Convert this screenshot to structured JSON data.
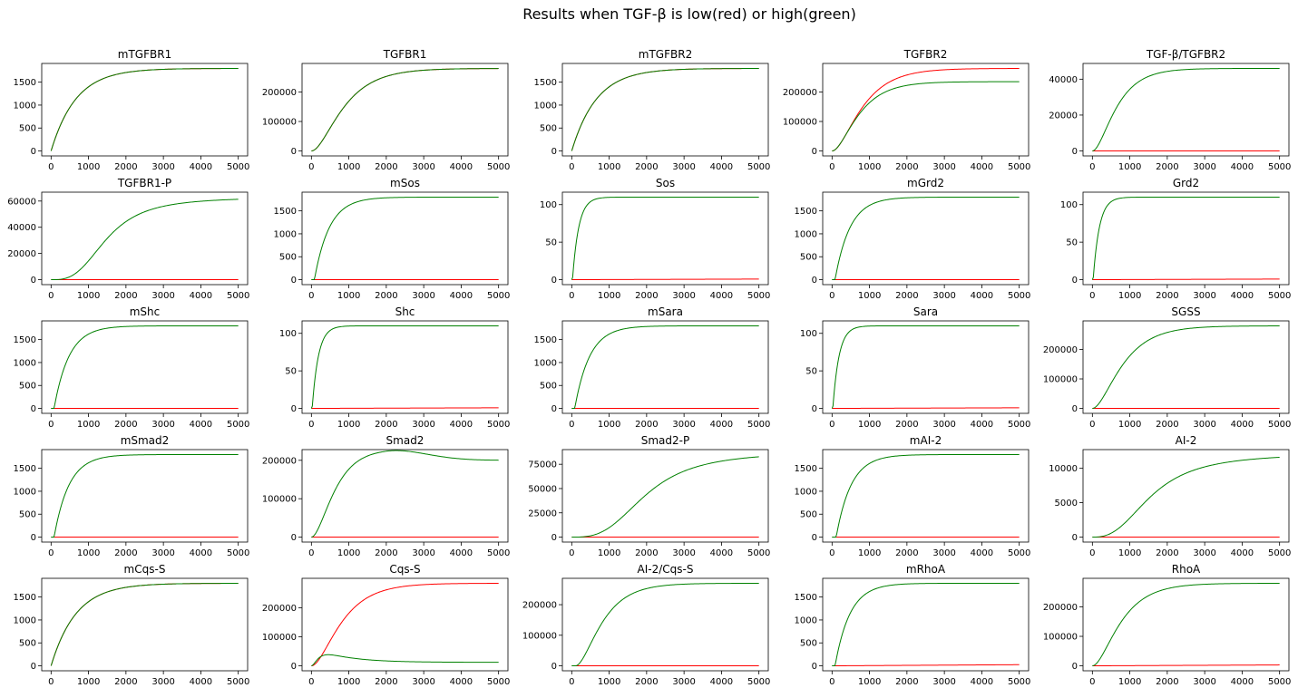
{
  "figure_title": "Results when TGF-β is low(red) or high(green)",
  "colors": {
    "low": "#ff0000",
    "high": "#008000",
    "axes": "#000000"
  },
  "chart_data": [
    {
      "type": "line",
      "title": "mTGFBR1",
      "xlim": [
        0,
        5000
      ],
      "ylim": [
        0,
        1800
      ],
      "xticks": [
        0,
        1000,
        2000,
        3000,
        4000,
        5000
      ],
      "yticks": [
        0,
        500,
        1000,
        1500
      ],
      "ytick_labels": [
        "0",
        "500",
        "1000",
        "1500"
      ],
      "series": [
        {
          "color": "#ff0000",
          "model": "sat",
          "params": {
            "A": 1800,
            "k": 0.0015
          }
        },
        {
          "color": "#008000",
          "model": "sat",
          "params": {
            "A": 1800,
            "k": 0.0015
          }
        }
      ]
    },
    {
      "type": "line",
      "title": "TGFBR1",
      "xlim": [
        0,
        5000
      ],
      "ylim": [
        0,
        280000
      ],
      "xticks": [
        0,
        1000,
        2000,
        3000,
        4000,
        5000
      ],
      "yticks": [
        0,
        100000,
        200000
      ],
      "ytick_labels": [
        "0",
        "100000",
        "200000"
      ],
      "series": [
        {
          "color": "#ff0000",
          "model": "sig",
          "params": {
            "A": 280000,
            "k": 0.0015
          }
        },
        {
          "color": "#008000",
          "model": "sig",
          "params": {
            "A": 280000,
            "k": 0.0015
          }
        }
      ]
    },
    {
      "type": "line",
      "title": "mTGFBR2",
      "xlim": [
        0,
        5000
      ],
      "ylim": [
        0,
        1800
      ],
      "xticks": [
        0,
        1000,
        2000,
        3000,
        4000,
        5000
      ],
      "yticks": [
        0,
        500,
        1000,
        1500
      ],
      "ytick_labels": [
        "0",
        "500",
        "1000",
        "1500"
      ],
      "series": [
        {
          "color": "#ff0000",
          "model": "sat",
          "params": {
            "A": 1800,
            "k": 0.0015
          }
        },
        {
          "color": "#008000",
          "model": "sat",
          "params": {
            "A": 1800,
            "k": 0.0015
          }
        }
      ]
    },
    {
      "type": "line",
      "title": "TGFBR2",
      "xlim": [
        0,
        5000
      ],
      "ylim": [
        0,
        280000
      ],
      "xticks": [
        0,
        1000,
        2000,
        3000,
        4000,
        5000
      ],
      "yticks": [
        0,
        100000,
        200000
      ],
      "ytick_labels": [
        "0",
        "100000",
        "200000"
      ],
      "series": [
        {
          "color": "#ff0000",
          "model": "sig",
          "params": {
            "A": 280000,
            "k": 0.0016
          }
        },
        {
          "color": "#008000",
          "model": "sig",
          "params": {
            "A": 235000,
            "k": 0.0018
          }
        }
      ]
    },
    {
      "type": "line",
      "title": "TGF-β/TGFBR2",
      "xlim": [
        0,
        5000
      ],
      "ylim": [
        0,
        46000
      ],
      "xticks": [
        0,
        1000,
        2000,
        3000,
        4000,
        5000
      ],
      "yticks": [
        0,
        20000,
        40000
      ],
      "ytick_labels": [
        "0",
        "20000",
        "40000"
      ],
      "series": [
        {
          "color": "#ff0000",
          "model": "flat",
          "params": {
            "A": 0
          }
        },
        {
          "color": "#008000",
          "model": "sig",
          "params": {
            "A": 46000,
            "k": 0.002
          }
        }
      ]
    },
    {
      "type": "line",
      "title": "TGFBR1-P",
      "xlim": [
        0,
        5000
      ],
      "ylim": [
        0,
        63000
      ],
      "xticks": [
        0,
        1000,
        2000,
        3000,
        4000,
        5000
      ],
      "yticks": [
        0,
        20000,
        40000,
        60000
      ],
      "ytick_labels": [
        "0",
        "20000",
        "40000",
        "60000"
      ],
      "series": [
        {
          "color": "#ff0000",
          "model": "flat",
          "params": {
            "A": 0
          }
        },
        {
          "color": "#008000",
          "model": "hill",
          "params": {
            "A": 63000,
            "t50": 1500,
            "n": 3
          }
        }
      ]
    },
    {
      "type": "line",
      "title": "mSos",
      "xlim": [
        0,
        5000
      ],
      "ylim": [
        0,
        1800
      ],
      "xticks": [
        0,
        1000,
        2000,
        3000,
        4000,
        5000
      ],
      "yticks": [
        0,
        500,
        1000,
        1500
      ],
      "ytick_labels": [
        "0",
        "500",
        "1000",
        "1500"
      ],
      "series": [
        {
          "color": "#ff0000",
          "model": "flat",
          "params": {
            "A": 0
          }
        },
        {
          "color": "#008000",
          "model": "delsat",
          "params": {
            "A": 1800,
            "k": 0.0025,
            "d": 80
          }
        }
      ]
    },
    {
      "type": "line",
      "title": "Sos",
      "xlim": [
        0,
        5000
      ],
      "ylim": [
        0,
        110
      ],
      "xticks": [
        0,
        1000,
        2000,
        3000,
        4000,
        5000
      ],
      "yticks": [
        0,
        50,
        100
      ],
      "ytick_labels": [
        "0",
        "50",
        "100"
      ],
      "series": [
        {
          "color": "#ff0000",
          "model": "lin",
          "params": {
            "A": 0.8
          }
        },
        {
          "color": "#008000",
          "model": "delsat",
          "params": {
            "A": 110,
            "k": 0.006,
            "d": 20
          }
        }
      ]
    },
    {
      "type": "line",
      "title": "mGrd2",
      "xlim": [
        0,
        5000
      ],
      "ylim": [
        0,
        1800
      ],
      "xticks": [
        0,
        1000,
        2000,
        3000,
        4000,
        5000
      ],
      "yticks": [
        0,
        500,
        1000,
        1500
      ],
      "ytick_labels": [
        "0",
        "500",
        "1000",
        "1500"
      ],
      "series": [
        {
          "color": "#ff0000",
          "model": "flat",
          "params": {
            "A": 0
          }
        },
        {
          "color": "#008000",
          "model": "delsat",
          "params": {
            "A": 1800,
            "k": 0.0025,
            "d": 80
          }
        }
      ]
    },
    {
      "type": "line",
      "title": "Grd2",
      "xlim": [
        0,
        5000
      ],
      "ylim": [
        0,
        110
      ],
      "xticks": [
        0,
        1000,
        2000,
        3000,
        4000,
        5000
      ],
      "yticks": [
        0,
        50,
        100
      ],
      "ytick_labels": [
        "0",
        "50",
        "100"
      ],
      "series": [
        {
          "color": "#ff0000",
          "model": "lin",
          "params": {
            "A": 0.8
          }
        },
        {
          "color": "#008000",
          "model": "delsat",
          "params": {
            "A": 110,
            "k": 0.006,
            "d": 20
          }
        }
      ]
    },
    {
      "type": "line",
      "title": "mShc",
      "xlim": [
        0,
        5000
      ],
      "ylim": [
        0,
        1800
      ],
      "xticks": [
        0,
        1000,
        2000,
        3000,
        4000,
        5000
      ],
      "yticks": [
        0,
        500,
        1000,
        1500
      ],
      "ytick_labels": [
        "0",
        "500",
        "1000",
        "1500"
      ],
      "series": [
        {
          "color": "#ff0000",
          "model": "flat",
          "params": {
            "A": 0
          }
        },
        {
          "color": "#008000",
          "model": "delsat",
          "params": {
            "A": 1800,
            "k": 0.0025,
            "d": 80
          }
        }
      ]
    },
    {
      "type": "line",
      "title": "Shc",
      "xlim": [
        0,
        5000
      ],
      "ylim": [
        0,
        110
      ],
      "xticks": [
        0,
        1000,
        2000,
        3000,
        4000,
        5000
      ],
      "yticks": [
        0,
        50,
        100
      ],
      "ytick_labels": [
        "0",
        "50",
        "100"
      ],
      "series": [
        {
          "color": "#ff0000",
          "model": "lin",
          "params": {
            "A": 0.8
          }
        },
        {
          "color": "#008000",
          "model": "delsat",
          "params": {
            "A": 110,
            "k": 0.006,
            "d": 20
          }
        }
      ]
    },
    {
      "type": "line",
      "title": "mSara",
      "xlim": [
        0,
        5000
      ],
      "ylim": [
        0,
        1800
      ],
      "xticks": [
        0,
        1000,
        2000,
        3000,
        4000,
        5000
      ],
      "yticks": [
        0,
        500,
        1000,
        1500
      ],
      "ytick_labels": [
        "0",
        "500",
        "1000",
        "1500"
      ],
      "series": [
        {
          "color": "#ff0000",
          "model": "flat",
          "params": {
            "A": 0
          }
        },
        {
          "color": "#008000",
          "model": "delsat",
          "params": {
            "A": 1800,
            "k": 0.0025,
            "d": 80
          }
        }
      ]
    },
    {
      "type": "line",
      "title": "Sara",
      "xlim": [
        0,
        5000
      ],
      "ylim": [
        0,
        110
      ],
      "xticks": [
        0,
        1000,
        2000,
        3000,
        4000,
        5000
      ],
      "yticks": [
        0,
        50,
        100
      ],
      "ytick_labels": [
        "0",
        "50",
        "100"
      ],
      "series": [
        {
          "color": "#ff0000",
          "model": "lin",
          "params": {
            "A": 0.8
          }
        },
        {
          "color": "#008000",
          "model": "delsat",
          "params": {
            "A": 110,
            "k": 0.006,
            "d": 20
          }
        }
      ]
    },
    {
      "type": "line",
      "title": "SGSS",
      "xlim": [
        0,
        5000
      ],
      "ylim": [
        0,
        280000
      ],
      "xticks": [
        0,
        1000,
        2000,
        3000,
        4000,
        5000
      ],
      "yticks": [
        0,
        100000,
        200000
      ],
      "ytick_labels": [
        "0",
        "100000",
        "200000"
      ],
      "series": [
        {
          "color": "#ff0000",
          "model": "flat",
          "params": {
            "A": 0
          }
        },
        {
          "color": "#008000",
          "model": "sig",
          "params": {
            "A": 280000,
            "k": 0.0016
          }
        }
      ]
    },
    {
      "type": "line",
      "title": "mSmad2",
      "xlim": [
        0,
        5000
      ],
      "ylim": [
        0,
        1800
      ],
      "xticks": [
        0,
        1000,
        2000,
        3000,
        4000,
        5000
      ],
      "yticks": [
        0,
        500,
        1000,
        1500
      ],
      "ytick_labels": [
        "0",
        "500",
        "1000",
        "1500"
      ],
      "series": [
        {
          "color": "#ff0000",
          "model": "flat",
          "params": {
            "A": 0
          }
        },
        {
          "color": "#008000",
          "model": "delsat",
          "params": {
            "A": 1800,
            "k": 0.0025,
            "d": 80
          }
        }
      ]
    },
    {
      "type": "line",
      "title": "Smad2",
      "xlim": [
        0,
        5000
      ],
      "ylim": [
        0,
        215000
      ],
      "xticks": [
        0,
        1000,
        2000,
        3000,
        4000,
        5000
      ],
      "yticks": [
        0,
        100000,
        200000
      ],
      "ytick_labels": [
        "0",
        "100000",
        "200000"
      ],
      "series": [
        {
          "color": "#ff0000",
          "model": "flat",
          "params": {
            "A": 0
          }
        },
        {
          "color": "#008000",
          "model": "sigover",
          "params": {
            "A": 200000,
            "k": 0.0022,
            "B": 30000,
            "c": 2000,
            "w": 700
          }
        }
      ]
    },
    {
      "type": "line",
      "title": "Smad2-P",
      "xlim": [
        0,
        5000
      ],
      "ylim": [
        0,
        85000
      ],
      "xticks": [
        0,
        1000,
        2000,
        3000,
        4000,
        5000
      ],
      "yticks": [
        0,
        25000,
        50000,
        75000
      ],
      "ytick_labels": [
        "0",
        "25000",
        "50000",
        "75000"
      ],
      "series": [
        {
          "color": "#ff0000",
          "model": "flat",
          "params": {
            "A": 0
          }
        },
        {
          "color": "#008000",
          "model": "hill",
          "params": {
            "A": 88000,
            "t50": 2000,
            "n": 3
          }
        }
      ]
    },
    {
      "type": "line",
      "title": "mAI-2",
      "xlim": [
        0,
        5000
      ],
      "ylim": [
        0,
        1800
      ],
      "xticks": [
        0,
        1000,
        2000,
        3000,
        4000,
        5000
      ],
      "yticks": [
        0,
        500,
        1000,
        1500
      ],
      "ytick_labels": [
        "0",
        "500",
        "1000",
        "1500"
      ],
      "series": [
        {
          "color": "#ff0000",
          "model": "flat",
          "params": {
            "A": 0
          }
        },
        {
          "color": "#008000",
          "model": "delsat",
          "params": {
            "A": 1800,
            "k": 0.0025,
            "d": 110
          }
        }
      ]
    },
    {
      "type": "line",
      "title": "AI-2",
      "xlim": [
        0,
        5000
      ],
      "ylim": [
        0,
        12000
      ],
      "xticks": [
        0,
        1000,
        2000,
        3000,
        4000,
        5000
      ],
      "yticks": [
        0,
        5000,
        10000
      ],
      "ytick_labels": [
        "0",
        "5000",
        "10000"
      ],
      "series": [
        {
          "color": "#ff0000",
          "model": "flat",
          "params": {
            "A": 0
          }
        },
        {
          "color": "#008000",
          "model": "hill",
          "params": {
            "A": 12200,
            "t50": 1600,
            "n": 2.6
          }
        }
      ]
    },
    {
      "type": "line",
      "title": "mCqs-S",
      "xlim": [
        0,
        5000
      ],
      "ylim": [
        0,
        1800
      ],
      "xticks": [
        0,
        1000,
        2000,
        3000,
        4000,
        5000
      ],
      "yticks": [
        0,
        500,
        1000,
        1500
      ],
      "ytick_labels": [
        "0",
        "500",
        "1000",
        "1500"
      ],
      "series": [
        {
          "color": "#ff0000",
          "model": "sat",
          "params": {
            "A": 1800,
            "k": 0.0015
          }
        },
        {
          "color": "#008000",
          "model": "sat",
          "params": {
            "A": 1800,
            "k": 0.0015
          }
        }
      ]
    },
    {
      "type": "line",
      "title": "Cqs-S",
      "xlim": [
        0,
        5000
      ],
      "ylim": [
        0,
        285000
      ],
      "xticks": [
        0,
        1000,
        2000,
        3000,
        4000,
        5000
      ],
      "yticks": [
        0,
        100000,
        200000
      ],
      "ytick_labels": [
        "0",
        "100000",
        "200000"
      ],
      "series": [
        {
          "color": "#ff0000",
          "model": "sig",
          "params": {
            "A": 285000,
            "k": 0.0016
          }
        },
        {
          "color": "#008000",
          "model": "sigdecay",
          "params": {
            "A": 12000,
            "B": 55000,
            "k1": 0.006,
            "k2": 0.0012
          }
        }
      ]
    },
    {
      "type": "line",
      "title": "AI-2/Cqs-S",
      "xlim": [
        0,
        5000
      ],
      "ylim": [
        0,
        270000
      ],
      "xticks": [
        0,
        1000,
        2000,
        3000,
        4000,
        5000
      ],
      "yticks": [
        0,
        100000,
        200000
      ],
      "ytick_labels": [
        "0",
        "100000",
        "200000"
      ],
      "series": [
        {
          "color": "#ff0000",
          "model": "flat",
          "params": {
            "A": 0
          }
        },
        {
          "color": "#008000",
          "model": "sigd",
          "params": {
            "A": 270000,
            "k": 0.0018,
            "d": 100
          }
        }
      ]
    },
    {
      "type": "line",
      "title": "mRhoA",
      "xlim": [
        0,
        5000
      ],
      "ylim": [
        0,
        1800
      ],
      "xticks": [
        0,
        1000,
        2000,
        3000,
        4000,
        5000
      ],
      "yticks": [
        0,
        500,
        1000,
        1500
      ],
      "ytick_labels": [
        "0",
        "500",
        "1000",
        "1500"
      ],
      "series": [
        {
          "color": "#ff0000",
          "model": "lin",
          "params": {
            "A": 25
          }
        },
        {
          "color": "#008000",
          "model": "delsat",
          "params": {
            "A": 1800,
            "k": 0.0025,
            "d": 80
          }
        }
      ]
    },
    {
      "type": "line",
      "title": "RhoA",
      "xlim": [
        0,
        5000
      ],
      "ylim": [
        0,
        280000
      ],
      "xticks": [
        0,
        1000,
        2000,
        3000,
        4000,
        5000
      ],
      "yticks": [
        0,
        100000,
        200000
      ],
      "ytick_labels": [
        "0",
        "100000",
        "200000"
      ],
      "series": [
        {
          "color": "#ff0000",
          "model": "lin",
          "params": {
            "A": 3000
          }
        },
        {
          "color": "#008000",
          "model": "sig",
          "params": {
            "A": 280000,
            "k": 0.0017
          }
        }
      ]
    }
  ]
}
